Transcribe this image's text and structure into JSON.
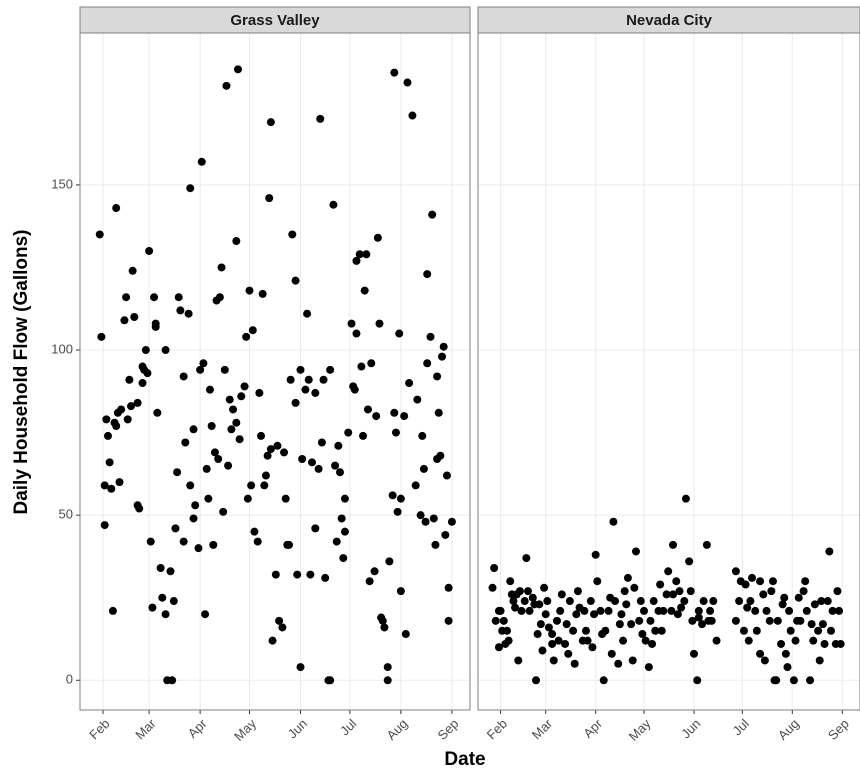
{
  "axis_labels": {
    "x": "Date",
    "y": "Daily Household Flow (Gallons)"
  },
  "chart_data": [
    {
      "type": "scatter",
      "title": "Grass Valley",
      "color": "#000000",
      "grid": true,
      "xlim": [
        18,
        255
      ],
      "ylim": [
        -9,
        196
      ],
      "xticks": [
        {
          "value": 32,
          "label": "Feb"
        },
        {
          "value": 60,
          "label": "Mar"
        },
        {
          "value": 91,
          "label": "Apr"
        },
        {
          "value": 121,
          "label": "May"
        },
        {
          "value": 152,
          "label": "Jun"
        },
        {
          "value": 182,
          "label": "Jul"
        },
        {
          "value": 213,
          "label": "Aug"
        },
        {
          "value": 244,
          "label": "Sep"
        }
      ],
      "yticks": [
        0,
        50,
        100,
        150
      ],
      "x": [
        30,
        31,
        33,
        33,
        34,
        35,
        36,
        37,
        38,
        39,
        40,
        40,
        41,
        42,
        43,
        45,
        46,
        47,
        48,
        49,
        50,
        51,
        53,
        53,
        54,
        56,
        56,
        57,
        58,
        59,
        60,
        61,
        62,
        63,
        64,
        64,
        65,
        67,
        68,
        70,
        70,
        71,
        73,
        74,
        75,
        76,
        77,
        78,
        79,
        81,
        81,
        82,
        84,
        85,
        85,
        87,
        87,
        88,
        90,
        91,
        92,
        93,
        94,
        95,
        96,
        97,
        98,
        99,
        100,
        101,
        102,
        103,
        104,
        105,
        106,
        107,
        108,
        109,
        110,
        111,
        113,
        114,
        113,
        115,
        116,
        118,
        119,
        120,
        121,
        122,
        123,
        124,
        126,
        127,
        128,
        129,
        130,
        131,
        132,
        133,
        134,
        134,
        135,
        137,
        138,
        139,
        141,
        142,
        143,
        144,
        145,
        146,
        147,
        149,
        149,
        150,
        152,
        152,
        153,
        155,
        156,
        157,
        158,
        159,
        161,
        161,
        163,
        164,
        165,
        166,
        167,
        169,
        170,
        170,
        172,
        173,
        174,
        175,
        176,
        177,
        178,
        179,
        179,
        181,
        183,
        184,
        185,
        186,
        186,
        188,
        189,
        190,
        191,
        192,
        193,
        194,
        195,
        197,
        198,
        199,
        200,
        201,
        202,
        203,
        205,
        205,
        206,
        208,
        209,
        209,
        210,
        211,
        212,
        213,
        213,
        215,
        216,
        217,
        218,
        220,
        222,
        223,
        225,
        226,
        227,
        228,
        229,
        229,
        231,
        232,
        233,
        234,
        235,
        235,
        236,
        237,
        238,
        239,
        240,
        241,
        242,
        242,
        244
      ],
      "values": [
        135,
        104,
        59,
        47,
        79,
        74,
        66,
        58,
        21,
        78,
        143,
        77,
        81,
        60,
        82,
        109,
        116,
        79,
        91,
        83,
        124,
        110,
        84,
        53,
        52,
        90,
        95,
        94,
        100,
        93,
        130,
        42,
        22,
        116,
        108,
        107,
        81,
        34,
        25,
        100,
        20,
        0,
        33,
        0,
        24,
        46,
        63,
        116,
        112,
        92,
        42,
        72,
        111,
        149,
        59,
        76,
        49,
        53,
        40,
        94,
        157,
        96,
        20,
        64,
        55,
        88,
        77,
        41,
        69,
        115,
        67,
        116,
        125,
        51,
        94,
        180,
        65,
        85,
        76,
        82,
        78,
        185,
        133,
        73,
        86,
        89,
        104,
        55,
        118,
        59,
        106,
        45,
        42,
        87,
        74,
        117,
        59,
        62,
        68,
        146,
        70,
        169,
        12,
        32,
        71,
        18,
        16,
        69,
        55,
        41,
        41,
        91,
        135,
        121,
        84,
        32,
        4,
        94,
        67,
        88,
        111,
        91,
        32,
        66,
        46,
        87,
        64,
        170,
        72,
        91,
        31,
        0,
        0,
        94,
        144,
        65,
        42,
        71,
        63,
        49,
        37,
        45,
        55,
        75,
        108,
        89,
        88,
        127,
        105,
        129,
        95,
        74,
        118,
        129,
        82,
        30,
        96,
        33,
        80,
        134,
        108,
        19,
        18,
        16,
        4,
        0,
        36,
        56,
        184,
        81,
        75,
        51,
        105,
        27,
        55,
        80,
        14,
        181,
        90,
        171,
        59,
        85,
        50,
        74,
        64,
        48,
        123,
        96,
        104,
        141,
        49,
        41,
        92,
        67,
        81,
        68,
        98,
        101,
        44,
        62,
        18,
        28,
        48
      ]
    },
    {
      "type": "scatter",
      "title": "Nevada City",
      "color": "#000000",
      "grid": true,
      "xlim": [
        18,
        255
      ],
      "ylim": [
        -9,
        196
      ],
      "xticks": [
        {
          "value": 32,
          "label": "Feb"
        },
        {
          "value": 60,
          "label": "Mar"
        },
        {
          "value": 91,
          "label": "Apr"
        },
        {
          "value": 121,
          "label": "May"
        },
        {
          "value": 152,
          "label": "Jun"
        },
        {
          "value": 182,
          "label": "Jul"
        },
        {
          "value": 213,
          "label": "Aug"
        },
        {
          "value": 244,
          "label": "Sep"
        }
      ],
      "yticks": [
        0,
        50,
        100,
        150
      ],
      "x": [
        27,
        28,
        29,
        31,
        31,
        32,
        33,
        34,
        35,
        36,
        37,
        38,
        39,
        40,
        41,
        42,
        43,
        44,
        45,
        47,
        48,
        49,
        50,
        52,
        53,
        54,
        55,
        56,
        57,
        58,
        59,
        60,
        61,
        62,
        64,
        64,
        65,
        67,
        68,
        69,
        70,
        72,
        73,
        74,
        75,
        77,
        78,
        79,
        80,
        81,
        83,
        84,
        85,
        86,
        88,
        89,
        90,
        91,
        92,
        94,
        95,
        96,
        97,
        99,
        100,
        101,
        102,
        103,
        105,
        106,
        107,
        108,
        109,
        110,
        111,
        113,
        114,
        115,
        116,
        118,
        119,
        120,
        121,
        122,
        124,
        125,
        126,
        127,
        128,
        130,
        131,
        132,
        133,
        135,
        136,
        138,
        139,
        139,
        141,
        142,
        143,
        144,
        146,
        147,
        149,
        150,
        151,
        152,
        154,
        155,
        155,
        157,
        158,
        160,
        161,
        162,
        163,
        164,
        166,
        178,
        178,
        180,
        181,
        183,
        184,
        185,
        186,
        187,
        188,
        190,
        191,
        193,
        193,
        195,
        196,
        197,
        199,
        200,
        201,
        202,
        203,
        204,
        206,
        207,
        208,
        209,
        210,
        211,
        212,
        214,
        215,
        216,
        217,
        218,
        220,
        221,
        222,
        224,
        225,
        226,
        227,
        229,
        230,
        231,
        232,
        233,
        235,
        236,
        237,
        238,
        240,
        241,
        242,
        243
      ],
      "values": [
        28,
        34,
        18,
        21,
        10,
        21,
        15,
        18,
        11,
        15,
        12,
        30,
        26,
        24,
        22,
        26,
        6,
        27,
        21,
        24,
        37,
        27,
        21,
        25,
        23,
        0,
        14,
        23,
        17,
        9,
        28,
        20,
        24,
        16,
        11,
        14,
        6,
        18,
        12,
        21,
        26,
        11,
        17,
        8,
        24,
        15,
        5,
        20,
        27,
        22,
        12,
        21,
        15,
        12,
        24,
        10,
        20,
        38,
        30,
        21,
        14,
        0,
        15,
        21,
        25,
        8,
        48,
        24,
        5,
        17,
        20,
        12,
        27,
        23,
        31,
        17,
        6,
        28,
        39,
        18,
        24,
        14,
        21,
        12,
        4,
        18,
        11,
        24,
        15,
        21,
        29,
        15,
        21,
        26,
        33,
        21,
        26,
        41,
        30,
        20,
        27,
        22,
        24,
        55,
        36,
        27,
        18,
        8,
        0,
        21,
        19,
        17,
        24,
        41,
        18,
        21,
        18,
        24,
        12,
        33,
        18,
        24,
        30,
        15,
        29,
        22,
        12,
        24,
        31,
        21,
        15,
        30,
        8,
        26,
        6,
        21,
        18,
        27,
        30,
        0,
        0,
        18,
        11,
        23,
        25,
        8,
        4,
        21,
        15,
        0,
        12,
        18,
        25,
        18,
        27,
        30,
        21,
        0,
        17,
        12,
        23,
        15,
        6,
        24,
        17,
        11,
        24,
        39,
        15,
        21,
        11,
        27,
        21,
        11
      ]
    }
  ]
}
